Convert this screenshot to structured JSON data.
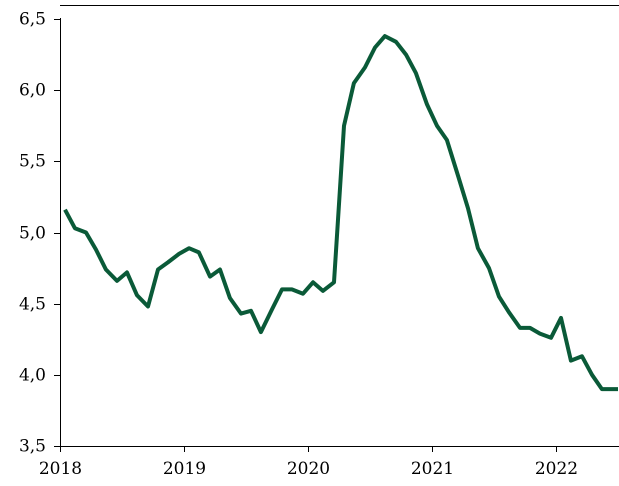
{
  "chart_data": {
    "type": "line",
    "title": "",
    "xlabel": "",
    "ylabel": "",
    "xlim": [
      2018,
      2022.5
    ],
    "ylim": [
      3.5,
      6.5
    ],
    "grid": false,
    "y_ticks": [
      3.5,
      4.0,
      4.5,
      5.0,
      5.5,
      6.0,
      6.5
    ],
    "y_tick_labels": [
      "3,5",
      "4,0",
      "4,5",
      "5,0",
      "5,5",
      "6,0",
      "6,5"
    ],
    "x_ticks": [
      2018,
      2019,
      2020,
      2021,
      2022
    ],
    "x_tick_labels": [
      "2018",
      "2019",
      "2020",
      "2021",
      "2022"
    ],
    "series": [
      {
        "color": "#0a5a38",
        "points": [
          [
            2018.04,
            5.16
          ],
          [
            2018.12,
            5.03
          ],
          [
            2018.21,
            5.0
          ],
          [
            2018.29,
            4.88
          ],
          [
            2018.37,
            4.74
          ],
          [
            2018.46,
            4.66
          ],
          [
            2018.54,
            4.72
          ],
          [
            2018.62,
            4.56
          ],
          [
            2018.71,
            4.48
          ],
          [
            2018.79,
            4.74
          ],
          [
            2018.87,
            4.79
          ],
          [
            2018.96,
            4.85
          ],
          [
            2019.04,
            4.89
          ],
          [
            2019.12,
            4.86
          ],
          [
            2019.21,
            4.69
          ],
          [
            2019.29,
            4.74
          ],
          [
            2019.37,
            4.54
          ],
          [
            2019.46,
            4.43
          ],
          [
            2019.54,
            4.45
          ],
          [
            2019.62,
            4.3
          ],
          [
            2019.71,
            4.46
          ],
          [
            2019.79,
            4.6
          ],
          [
            2019.87,
            4.6
          ],
          [
            2019.96,
            4.57
          ],
          [
            2020.04,
            4.65
          ],
          [
            2020.12,
            4.59
          ],
          [
            2020.21,
            4.65
          ],
          [
            2020.29,
            5.75
          ],
          [
            2020.37,
            6.05
          ],
          [
            2020.46,
            6.16
          ],
          [
            2020.54,
            6.3
          ],
          [
            2020.62,
            6.38
          ],
          [
            2020.71,
            6.34
          ],
          [
            2020.79,
            6.25
          ],
          [
            2020.87,
            6.12
          ],
          [
            2020.96,
            5.9
          ],
          [
            2021.04,
            5.75
          ],
          [
            2021.12,
            5.65
          ],
          [
            2021.21,
            5.4
          ],
          [
            2021.29,
            5.17
          ],
          [
            2021.37,
            4.89
          ],
          [
            2021.46,
            4.75
          ],
          [
            2021.54,
            4.55
          ],
          [
            2021.62,
            4.44
          ],
          [
            2021.71,
            4.33
          ],
          [
            2021.79,
            4.33
          ],
          [
            2021.87,
            4.29
          ],
          [
            2021.96,
            4.26
          ],
          [
            2022.04,
            4.4
          ],
          [
            2022.12,
            4.1
          ],
          [
            2022.21,
            4.13
          ],
          [
            2022.29,
            4.0
          ],
          [
            2022.37,
            3.9
          ],
          [
            2022.46,
            3.9
          ],
          [
            2022.5,
            3.9
          ]
        ]
      }
    ]
  }
}
